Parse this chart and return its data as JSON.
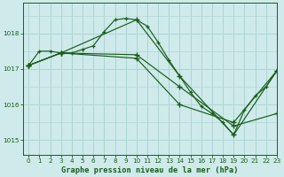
{
  "title": "Graphe pression niveau de la mer (hPa)",
  "bg_color": "#ceeaea",
  "grid_color": "#afd4d4",
  "line_color": "#1a5c1a",
  "text_color": "#1a5c1a",
  "xlim": [
    -0.5,
    23
  ],
  "ylim": [
    1014.6,
    1018.85
  ],
  "yticks": [
    1015,
    1016,
    1017,
    1018
  ],
  "xticks": [
    0,
    1,
    2,
    3,
    4,
    5,
    6,
    7,
    8,
    9,
    10,
    11,
    12,
    13,
    14,
    15,
    16,
    17,
    18,
    19,
    20,
    21,
    22,
    23
  ],
  "series": [
    {
      "x": [
        0,
        1,
        2,
        3,
        4,
        5,
        6,
        7,
        8,
        9,
        10,
        11,
        12,
        13,
        14,
        15,
        16,
        17,
        18,
        19,
        20,
        21,
        22,
        23
      ],
      "y": [
        1017.1,
        1017.5,
        1017.5,
        1017.45,
        1017.45,
        1017.55,
        1017.65,
        1018.05,
        1018.38,
        1018.42,
        1018.38,
        1018.2,
        1017.75,
        1017.25,
        1016.8,
        1016.35,
        1015.95,
        1015.75,
        1015.5,
        1015.15,
        1015.85,
        1016.25,
        1016.5,
        1016.95
      ]
    },
    {
      "x": [
        0,
        3,
        10,
        14,
        19,
        23
      ],
      "y": [
        1017.1,
        1017.45,
        1018.38,
        1016.8,
        1015.15,
        1016.95
      ]
    },
    {
      "x": [
        0,
        3,
        10,
        14,
        19,
        23
      ],
      "y": [
        1017.1,
        1017.45,
        1017.4,
        1016.5,
        1015.4,
        1015.75
      ]
    },
    {
      "x": [
        0,
        3,
        10,
        14,
        19,
        23
      ],
      "y": [
        1017.1,
        1017.45,
        1017.3,
        1016.0,
        1015.5,
        1016.95
      ]
    }
  ]
}
